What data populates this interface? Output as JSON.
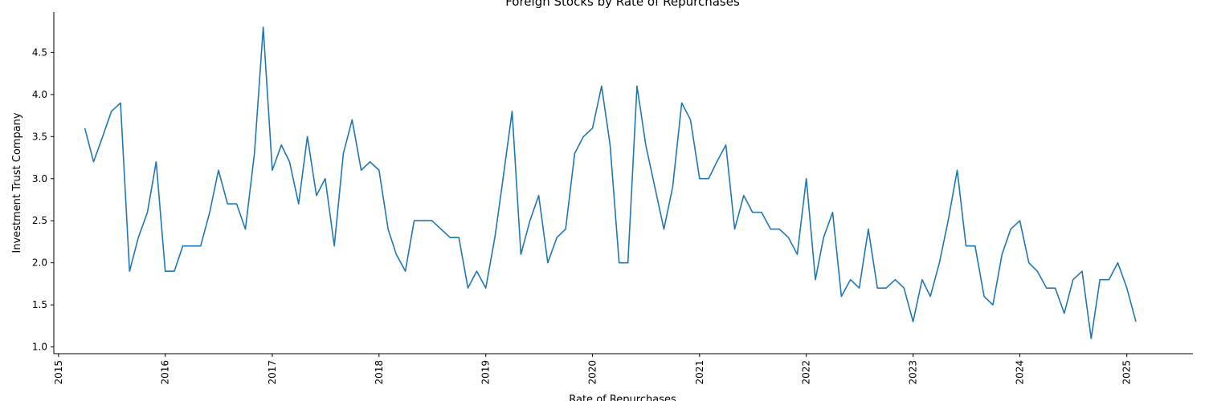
{
  "chart_data": {
    "type": "line",
    "title": "Foreign Stocks by Rate of Repurchases",
    "xlabel": "Rate of Repurchases",
    "ylabel": "Investment Trust Company",
    "xlim": [
      "2014-12-16",
      "2025-08-15"
    ],
    "ylim": [
      0.92,
      4.98
    ],
    "x_ticks": [
      "2015",
      "2016",
      "2017",
      "2018",
      "2019",
      "2020",
      "2021",
      "2022",
      "2023",
      "2024",
      "2025"
    ],
    "y_ticks": [
      "1.0",
      "1.5",
      "2.0",
      "2.5",
      "3.0",
      "3.5",
      "4.0",
      "4.5"
    ],
    "grid": false,
    "line_color": "#1f77b4",
    "series": [
      {
        "x": [
          "2015-04",
          "2015-05",
          "2015-06",
          "2015-07",
          "2015-08",
          "2015-09",
          "2015-10",
          "2015-11",
          "2015-12",
          "2016-01",
          "2016-02",
          "2016-03",
          "2016-04",
          "2016-05",
          "2016-06",
          "2016-07",
          "2016-08",
          "2016-09",
          "2016-10",
          "2016-11",
          "2016-12",
          "2017-01",
          "2017-02",
          "2017-03",
          "2017-04",
          "2017-05",
          "2017-06",
          "2017-07",
          "2017-08",
          "2017-09",
          "2017-10",
          "2017-11",
          "2017-12",
          "2018-01",
          "2018-02",
          "2018-03",
          "2018-04",
          "2018-05",
          "2018-06",
          "2018-07",
          "2018-08",
          "2018-09",
          "2018-10",
          "2018-11",
          "2018-12",
          "2019-01",
          "2019-02",
          "2019-03",
          "2019-04",
          "2019-05",
          "2019-06",
          "2019-07",
          "2019-08",
          "2019-09",
          "2019-10",
          "2019-11",
          "2019-12",
          "2020-01",
          "2020-02",
          "2020-03",
          "2020-04",
          "2020-05",
          "2020-06",
          "2020-07",
          "2020-08",
          "2020-09",
          "2020-10",
          "2020-11",
          "2020-12",
          "2021-01",
          "2021-02",
          "2021-03",
          "2021-04",
          "2021-05",
          "2021-06",
          "2021-07",
          "2021-08",
          "2021-09",
          "2021-10",
          "2021-11",
          "2021-12",
          "2022-01",
          "2022-02",
          "2022-03",
          "2022-04",
          "2022-05",
          "2022-06",
          "2022-07",
          "2022-08",
          "2022-09",
          "2022-10",
          "2022-11",
          "2022-12",
          "2023-01",
          "2023-02",
          "2023-03",
          "2023-04",
          "2023-05",
          "2023-06",
          "2023-07",
          "2023-08",
          "2023-09",
          "2023-10",
          "2023-11",
          "2023-12",
          "2024-01",
          "2024-02",
          "2024-03",
          "2024-04",
          "2024-05",
          "2024-06",
          "2024-07",
          "2024-08",
          "2024-09",
          "2024-10",
          "2024-11",
          "2024-12",
          "2025-01",
          "2025-02"
        ],
        "y": [
          3.6,
          3.2,
          3.5,
          3.8,
          3.9,
          1.9,
          2.3,
          2.6,
          3.2,
          1.9,
          1.9,
          2.2,
          2.2,
          2.2,
          2.6,
          3.1,
          2.7,
          2.7,
          2.4,
          3.3,
          4.8,
          3.1,
          3.4,
          3.2,
          2.7,
          3.5,
          2.8,
          3.0,
          2.2,
          3.3,
          3.7,
          3.1,
          3.2,
          3.1,
          2.4,
          2.1,
          1.9,
          2.5,
          2.5,
          2.5,
          2.4,
          2.3,
          2.3,
          1.7,
          1.9,
          1.7,
          2.3,
          3.0,
          3.8,
          2.1,
          2.5,
          2.8,
          2.0,
          2.3,
          2.4,
          3.3,
          3.5,
          3.6,
          4.1,
          3.4,
          2.0,
          2.0,
          4.1,
          3.4,
          2.9,
          2.4,
          2.9,
          3.9,
          3.7,
          3.0,
          3.0,
          3.2,
          3.4,
          2.4,
          2.8,
          2.6,
          2.6,
          2.4,
          2.4,
          2.3,
          2.1,
          3.0,
          1.8,
          2.3,
          2.6,
          1.6,
          1.8,
          1.7,
          2.4,
          1.7,
          1.7,
          1.8,
          1.7,
          1.3,
          1.8,
          1.6,
          2.0,
          2.5,
          3.1,
          2.2,
          2.2,
          1.6,
          1.5,
          2.1,
          2.4,
          2.5,
          2.0,
          1.9,
          1.7,
          1.7,
          1.4,
          1.8,
          1.9,
          1.1,
          1.8,
          1.8,
          2.0,
          1.7,
          1.3
        ]
      }
    ]
  }
}
